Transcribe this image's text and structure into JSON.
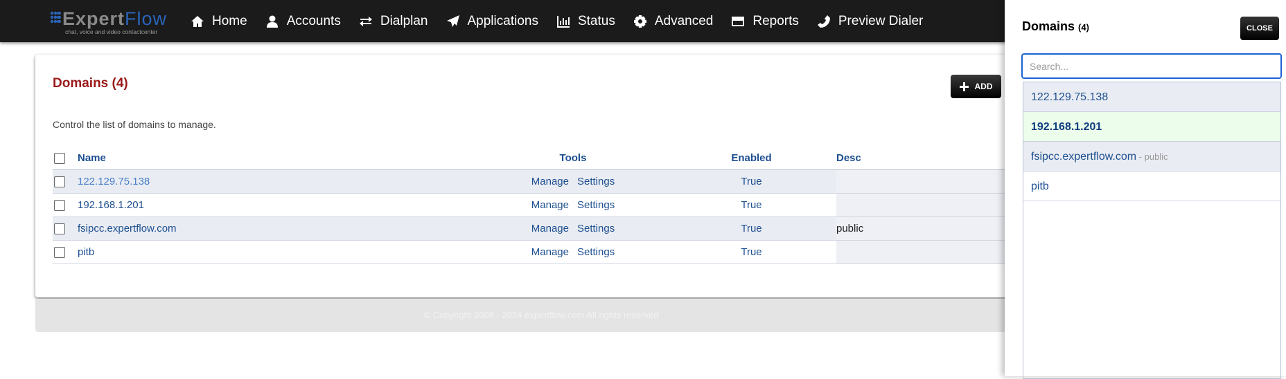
{
  "nav": {
    "logo_a": "Expert",
    "logo_b": "Flow",
    "tagline": "chat, voice and video contactcenter",
    "items": [
      {
        "label": "Home",
        "icon": "home-icon"
      },
      {
        "label": "Accounts",
        "icon": "user-icon"
      },
      {
        "label": "Dialplan",
        "icon": "exchange-icon"
      },
      {
        "label": "Applications",
        "icon": "paper-plane-icon"
      },
      {
        "label": "Status",
        "icon": "bar-chart-icon"
      },
      {
        "label": "Advanced",
        "icon": "gear-icon"
      },
      {
        "label": "Reports",
        "icon": "card-icon"
      },
      {
        "label": "Preview Dialer",
        "icon": "phone-icon"
      }
    ]
  },
  "page": {
    "title": "Domains (4)",
    "add_label": "ADD",
    "description": "Control the list of domains to manage.",
    "columns": [
      "Name",
      "Tools",
      "Enabled",
      "Desc"
    ],
    "rows": [
      {
        "name": "122.129.75.138",
        "tools": [
          "Manage",
          "Settings"
        ],
        "enabled": "True",
        "desc": ""
      },
      {
        "name": "192.168.1.201",
        "tools": [
          "Manage",
          "Settings"
        ],
        "enabled": "True",
        "desc": ""
      },
      {
        "name": "fsipcc.expertflow.com",
        "tools": [
          "Manage",
          "Settings"
        ],
        "enabled": "True",
        "desc": "public"
      },
      {
        "name": "pitb",
        "tools": [
          "Manage",
          "Settings"
        ],
        "enabled": "True",
        "desc": ""
      }
    ],
    "footer": "© Copyright 2008 - 2024 expertflow.com All rights reserved"
  },
  "panel": {
    "title": "Domains",
    "count": "(4)",
    "close_label": "CLOSE",
    "search_placeholder": "Search...",
    "items": [
      {
        "name": "122.129.75.138",
        "sub": ""
      },
      {
        "name": "192.168.1.201",
        "sub": "",
        "selected": true
      },
      {
        "name": "fsipcc.expertflow.com",
        "sub": " - public"
      },
      {
        "name": "pitb",
        "sub": ""
      }
    ]
  },
  "colors": {
    "title": "#9b1a1a",
    "link": "#1d4f91",
    "selected": "#edfdeb",
    "navbar": "#1b1b1b"
  }
}
